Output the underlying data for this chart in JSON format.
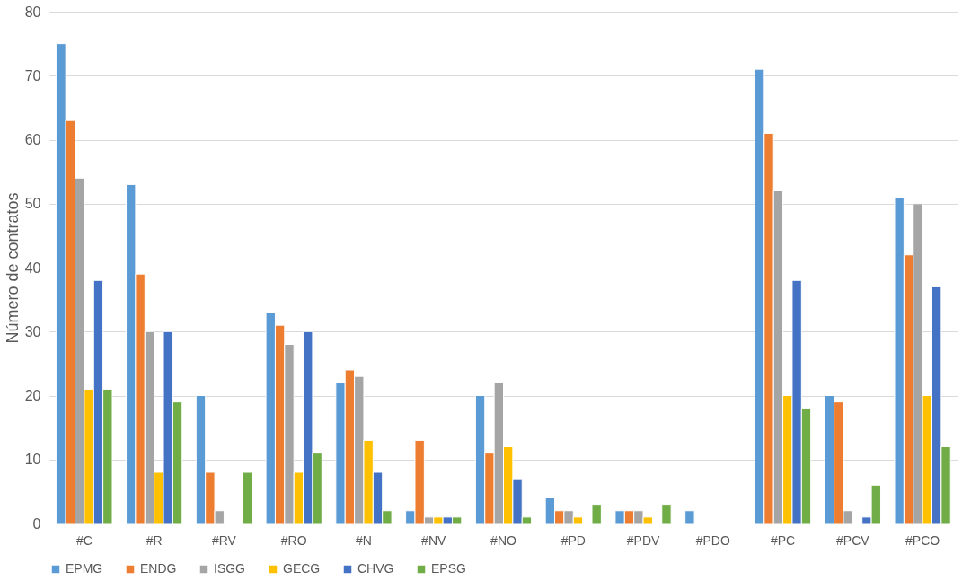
{
  "chart_data": {
    "type": "bar",
    "ylabel": "Número de contratos",
    "categories": [
      "#C",
      "#R",
      "#RV",
      "#RO",
      "#N",
      "#NV",
      "#NO",
      "#PD",
      "#PDV",
      "#PDO",
      "#PC",
      "#PCV",
      "#PCO"
    ],
    "series": [
      {
        "name": "EPMG",
        "color": "#5b9bd5",
        "values": [
          75,
          53,
          20,
          33,
          22,
          2,
          20,
          4,
          2,
          2,
          71,
          20,
          51
        ]
      },
      {
        "name": "ENDG",
        "color": "#ed7d31",
        "values": [
          63,
          39,
          8,
          31,
          24,
          13,
          11,
          2,
          2,
          null,
          61,
          19,
          42
        ]
      },
      {
        "name": "ISGG",
        "color": "#a5a5a5",
        "values": [
          54,
          30,
          2,
          28,
          23,
          1,
          22,
          2,
          2,
          null,
          52,
          2,
          50
        ]
      },
      {
        "name": "GECG",
        "color": "#ffc000",
        "values": [
          21,
          8,
          null,
          8,
          13,
          1,
          12,
          1,
          1,
          null,
          20,
          null,
          20
        ]
      },
      {
        "name": "CHVG",
        "color": "#4472c4",
        "values": [
          38,
          30,
          null,
          30,
          8,
          1,
          7,
          null,
          null,
          null,
          38,
          1,
          37
        ]
      },
      {
        "name": "EPSG",
        "color": "#70ad47",
        "values": [
          21,
          19,
          8,
          11,
          2,
          1,
          1,
          3,
          3,
          null,
          18,
          6,
          12
        ]
      }
    ],
    "ylim": [
      0,
      80
    ],
    "yticks": [
      0,
      10,
      20,
      30,
      40,
      50,
      60,
      70,
      80
    ],
    "grid": "y",
    "legend": "bottom"
  }
}
